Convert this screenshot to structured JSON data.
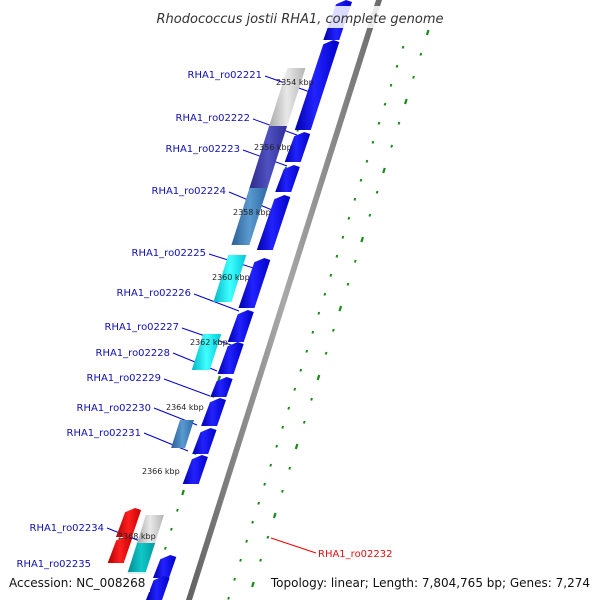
{
  "title": "Rhodococcus jostii RHA1, complete genome",
  "accession": "Accession: NC_008268",
  "topology": "Topology: linear; Length: 7,804,765 bp; Genes: 7,274",
  "colors": {
    "backbone": "#808080",
    "forward_gene": "#0000ee",
    "reverse_gene": "#3a7fc0",
    "highlight_gene": "#00dddd",
    "selected_gene": "#ee0000",
    "grey_gene": "#c0c0c0",
    "ruler_tick": "#1a8a1a",
    "gene_label": "#1010b0",
    "selected_label": "#dd1010"
  },
  "ruler_labels": [
    "2354 kbp",
    "2356 kbp",
    "2358 kbp",
    "2360 kbp",
    "2362 kbp",
    "2364 kbp",
    "2366 kbp",
    "2368 kbp"
  ],
  "gene_labels": [
    {
      "text": "RHA1_ro02221",
      "style": "normal"
    },
    {
      "text": "RHA1_ro02222",
      "style": "normal"
    },
    {
      "text": "RHA1_ro02223",
      "style": "normal"
    },
    {
      "text": "RHA1_ro02224",
      "style": "normal"
    },
    {
      "text": "RHA1_ro02225",
      "style": "normal"
    },
    {
      "text": "RHA1_ro02226",
      "style": "normal"
    },
    {
      "text": "RHA1_ro02227",
      "style": "normal"
    },
    {
      "text": "RHA1_ro02228",
      "style": "normal"
    },
    {
      "text": "RHA1_ro02229",
      "style": "normal"
    },
    {
      "text": "RHA1_ro02230",
      "style": "normal"
    },
    {
      "text": "RHA1_ro02231",
      "style": "normal"
    },
    {
      "text": "RHA1_ro02234",
      "style": "normal"
    },
    {
      "text": "RHA1_ro02235",
      "style": "normal"
    },
    {
      "text": "RHA1_ro02232",
      "style": "selected"
    }
  ]
}
